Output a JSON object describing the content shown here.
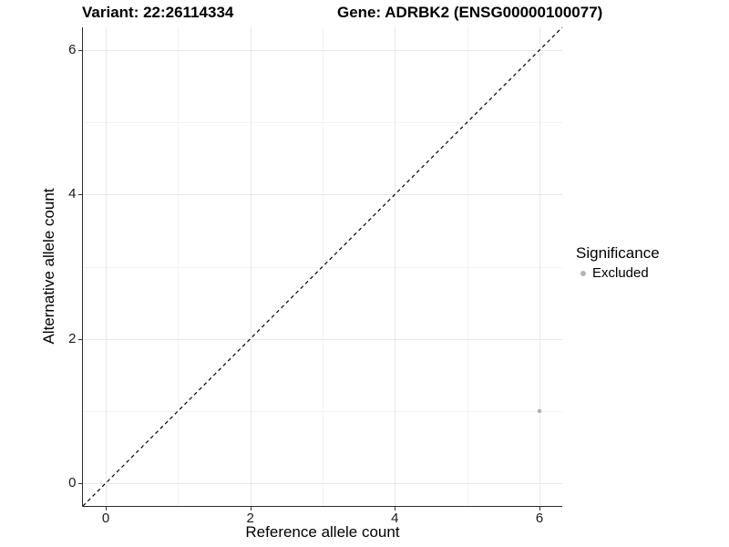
{
  "header": {
    "variant_title": "Variant: 22:26114334",
    "gene_title": "Gene: ADRBK2 (ENSG00000100077)"
  },
  "axes": {
    "x_label": "Reference allele count",
    "y_label": "Alternative allele count"
  },
  "legend": {
    "title": "Significance",
    "items": [
      {
        "label": "Excluded",
        "color": "#b4b4b4"
      }
    ]
  },
  "chart_data": {
    "type": "scatter",
    "title": "Variant: 22:26114334   Gene: ADRBK2 (ENSG00000100077)",
    "xlabel": "Reference allele count",
    "ylabel": "Alternative allele count",
    "xlim": [
      -0.315,
      6.315
    ],
    "ylim": [
      -0.315,
      6.315
    ],
    "x_ticks": [
      0,
      2,
      4,
      6
    ],
    "y_ticks": [
      0,
      2,
      4,
      6
    ],
    "x_minor_ticks": [
      1,
      3,
      5
    ],
    "y_minor_ticks": [
      1,
      3,
      5
    ],
    "grid": true,
    "legend_position": "right",
    "series": [
      {
        "name": "Excluded",
        "color": "#b4b4b4",
        "points": [
          {
            "x": 6,
            "y": 1
          }
        ]
      }
    ],
    "reference_line": {
      "type": "identity",
      "style": "dashed",
      "color": "#000000"
    },
    "style": {
      "grid_major_color": "#e8e8e8",
      "grid_minor_color": "#f2f2f2",
      "axis_color": "#2b2b2b",
      "tick_color": "#333333",
      "point_radius": 2.3,
      "background": "#ffffff"
    }
  }
}
